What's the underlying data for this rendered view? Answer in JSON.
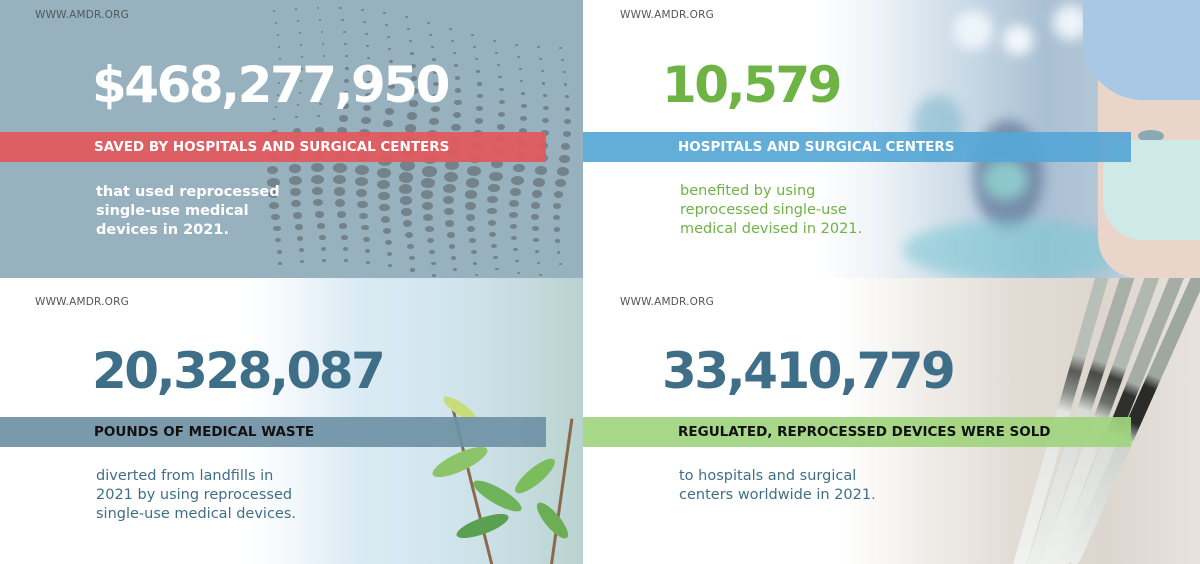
{
  "panels": [
    {
      "url": "WWW.AMDR.ORG",
      "stat": "$468,277,950",
      "band_label": "SAVED BY HOSPITALS AND SURGICAL CENTERS",
      "description": [
        "that used reprocessed",
        "single-use medical",
        "devices in 2021."
      ],
      "colors": {
        "background": "#97b1be",
        "stat": "#ffffff",
        "band": "#e05a5e",
        "band_text": "#ffffff",
        "description": "#ffffff"
      }
    },
    {
      "url": "WWW.AMDR.ORG",
      "stat": "10,579",
      "band_label": "HOSPITALS AND SURGICAL CENTERS",
      "description": [
        "benefited by using",
        "reprocessed single-use",
        "medical devised in 2021."
      ],
      "colors": {
        "stat": "#6db444",
        "band": "#5eaedb",
        "band_text": "#ffffff",
        "description": "#6db444"
      }
    },
    {
      "url": "WWW.AMDR.ORG",
      "stat": "20,328,087",
      "band_label": "POUNDS OF MEDICAL WASTE",
      "description": [
        "diverted from landfills in",
        "2021 by using reprocessed",
        "single-use medical devices."
      ],
      "colors": {
        "stat": "#3f6f88",
        "band": "#7898ab",
        "band_text": "#111111",
        "description": "#3f6f88"
      }
    },
    {
      "url": "WWW.AMDR.ORG",
      "stat": "33,410,779",
      "band_label": "REGULATED, REPROCESSED DEVICES WERE SOLD",
      "description": [
        "to hospitals and surgical",
        "centers worldwide in 2021."
      ],
      "colors": {
        "stat": "#3f6f88",
        "band": "#a8d786",
        "band_text": "#111111",
        "description": "#3f6f88"
      }
    }
  ]
}
